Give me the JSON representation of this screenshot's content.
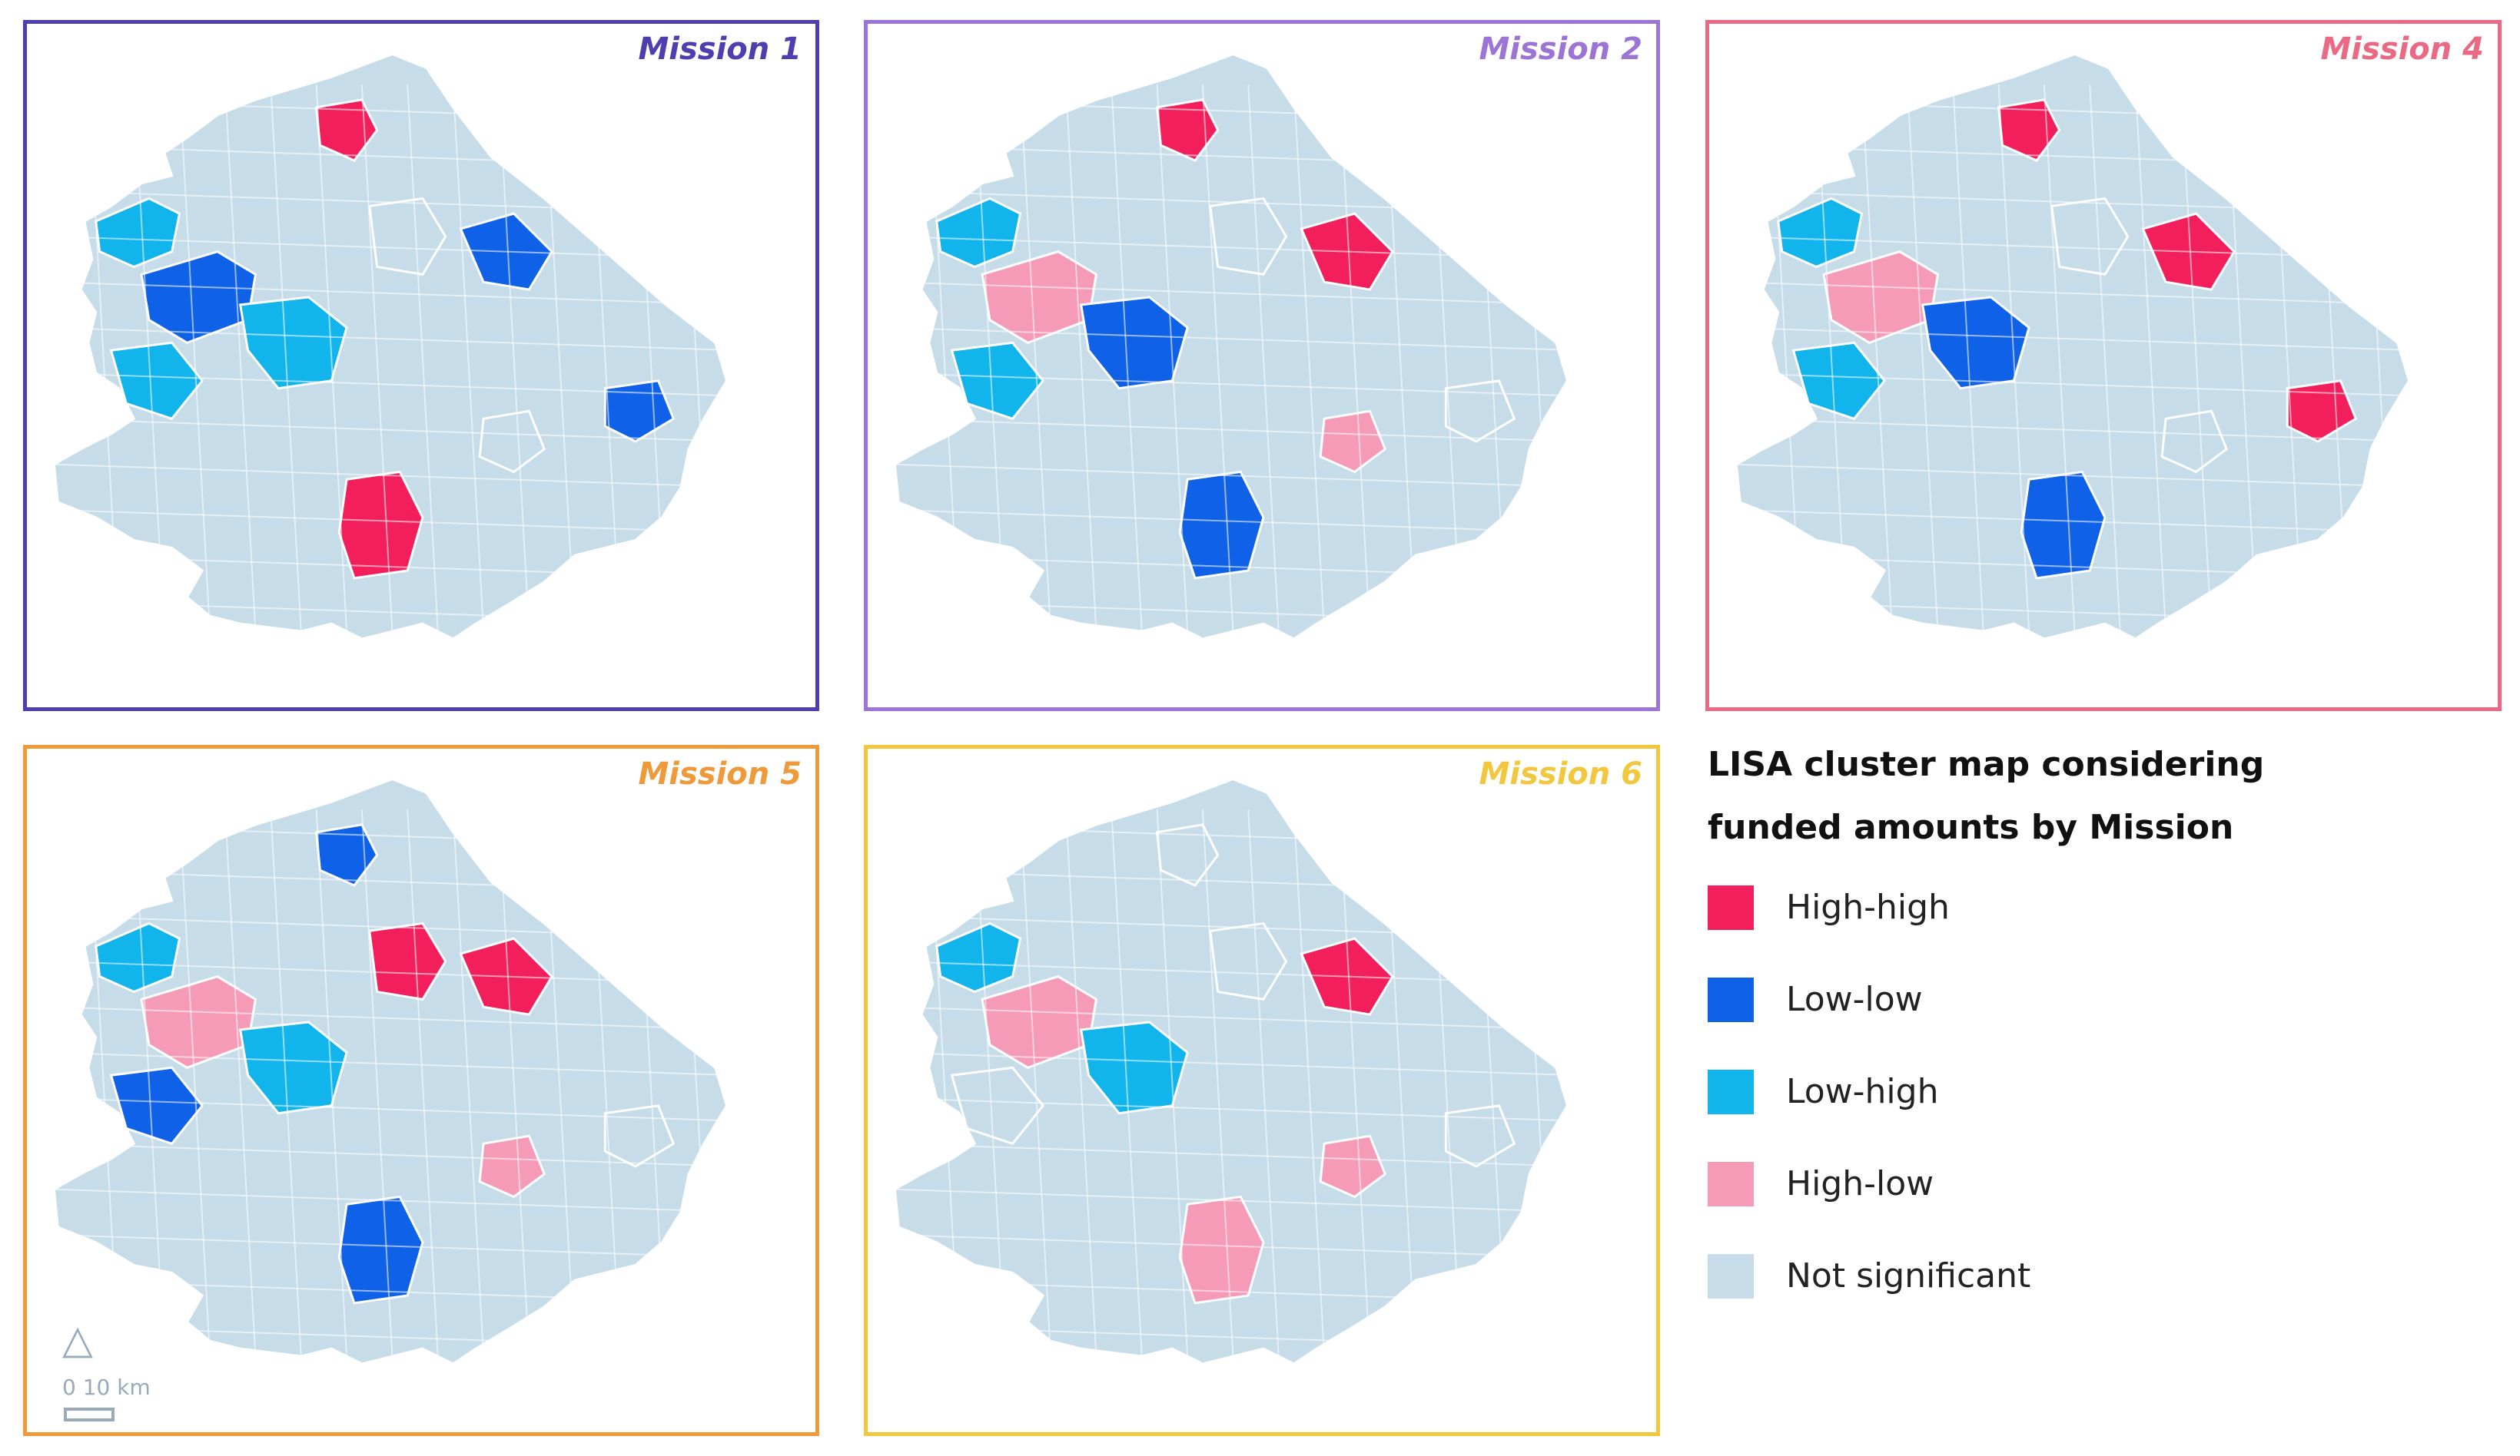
{
  "colors": {
    "high_high": "#f21f5c",
    "low_low": "#0f62e8",
    "low_high": "#12b4ec",
    "high_low": "#f59bb8",
    "not_significant": "#c6dce8",
    "boundary": "#ffffff"
  },
  "panels": [
    {
      "title": "Mission 1",
      "color": "#4d3fb0",
      "regions": [
        "low_high",
        "low_low",
        "high_high",
        "low_high",
        "not_significant",
        "low_low",
        "low_high",
        "high_high",
        "not_significant",
        "low_low"
      ]
    },
    {
      "title": "Mission 2",
      "color": "#9b74d6",
      "regions": [
        "low_high",
        "high_low",
        "high_high",
        "low_low",
        "not_significant",
        "high_high",
        "low_high",
        "low_low",
        "high_low",
        "not_significant"
      ]
    },
    {
      "title": "Mission 4",
      "color": "#ea6a84",
      "regions": [
        "low_high",
        "high_low",
        "high_high",
        "low_low",
        "not_significant",
        "high_high",
        "low_high",
        "low_low",
        "not_significant",
        "high_high"
      ]
    },
    {
      "title": "Mission 5",
      "color": "#ef9a3a",
      "regions": [
        "low_high",
        "high_low",
        "low_low",
        "low_high",
        "high_high",
        "high_high",
        "low_low",
        "low_low",
        "high_low",
        "not_significant"
      ]
    },
    {
      "title": "Mission 6",
      "color": "#f1c73f",
      "regions": [
        "low_high",
        "high_low",
        "not_significant",
        "low_high",
        "not_significant",
        "high_high",
        "not_significant",
        "high_low",
        "high_low",
        "not_significant"
      ]
    }
  ],
  "legend": {
    "title_line1": "LISA cluster map considering",
    "title_line2": "funded amounts by Mission",
    "items": [
      {
        "key": "high_high",
        "label": "High-high"
      },
      {
        "key": "low_low",
        "label": "Low-low"
      },
      {
        "key": "low_high",
        "label": "Low-high"
      },
      {
        "key": "high_low",
        "label": "High-low"
      },
      {
        "key": "not_significant",
        "label": "Not significant"
      }
    ]
  },
  "scale": {
    "label": "0   10 km",
    "north_icon": "north-arrow-icon"
  }
}
